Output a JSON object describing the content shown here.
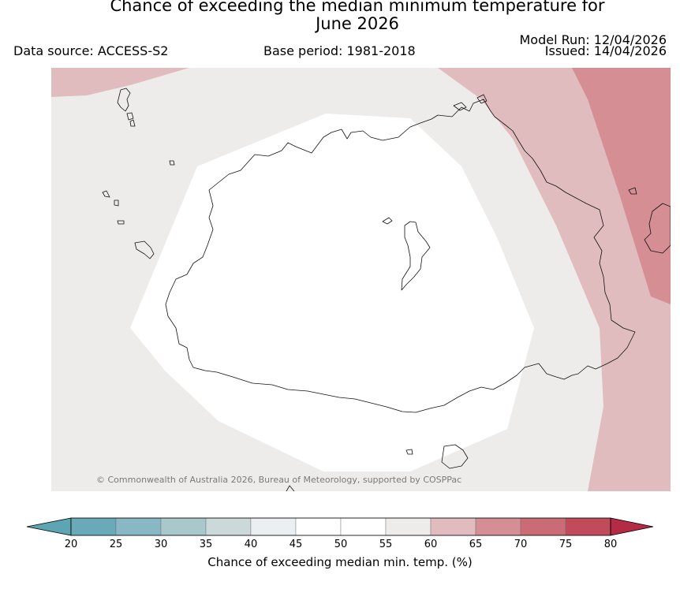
{
  "header": {
    "title_line1": "Chance of exceeding the median minimum temperature for",
    "title_line2": "June 2026",
    "data_source": "Data source: ACCESS-S2",
    "base_period": "Base period: 1981-2018",
    "model_run": "Model Run: 12/04/2026",
    "issued": "Issued: 14/04/2026"
  },
  "map": {
    "region": "Fiji",
    "copyright": "© Commonwealth of Australia 2026, Bureau of Meteorology, supported by COSPPac",
    "zones": [
      {
        "band": "45-55",
        "color": "#ffffff"
      },
      {
        "band": "55-60",
        "color": "#eeecea"
      },
      {
        "band": "60-65",
        "color": "#e1bcbf"
      },
      {
        "band": "65-70",
        "color": "#d48e94"
      }
    ]
  },
  "colorbar": {
    "label": "Chance of exceeding median min. temp. (%)",
    "ticks": [
      "20",
      "25",
      "30",
      "35",
      "40",
      "45",
      "50",
      "55",
      "60",
      "65",
      "70",
      "75",
      "80"
    ],
    "colors": [
      "#5ea5b3",
      "#6aaab8",
      "#88b8c3",
      "#a8c8cc",
      "#cbd9da",
      "#eaf0f2",
      "#ffffff",
      "#ffffff",
      "#eeecea",
      "#e1bcbf",
      "#d48e94",
      "#ca6b76",
      "#c24b5b",
      "#b52a45"
    ]
  }
}
